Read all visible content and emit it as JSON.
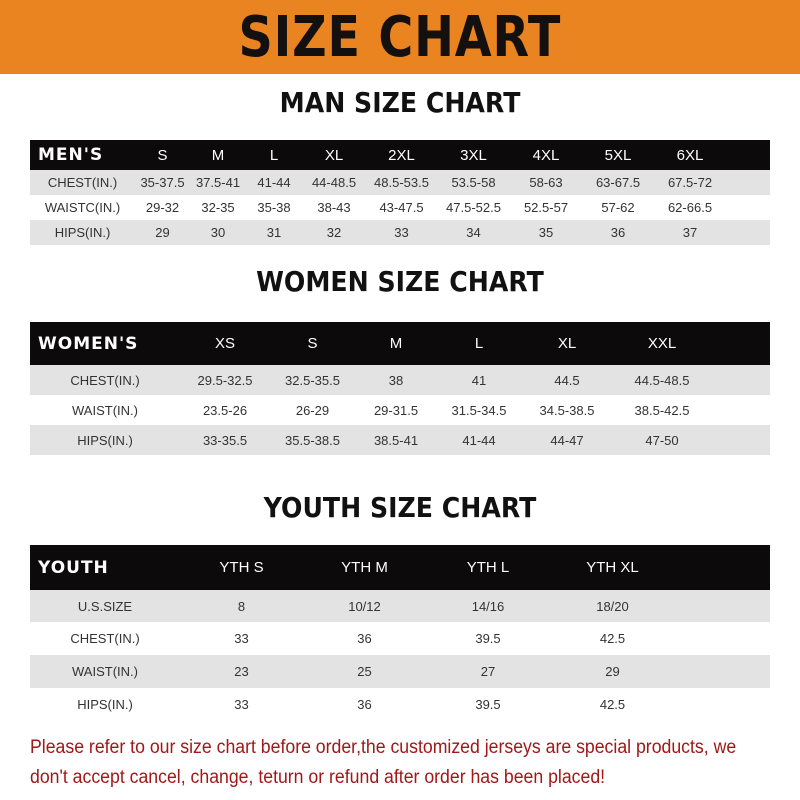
{
  "banner_title": "SIZE CHART",
  "colors": {
    "banner": "#ea8420",
    "header_row": "#0c0a0a",
    "stripe": "#e3e3e3",
    "notice": "#a01818"
  },
  "men": {
    "title": "MAN SIZE CHART",
    "header": [
      "MEN'S",
      "S",
      "M",
      "L",
      "XL",
      "2XL",
      "3XL",
      "4XL",
      "5XL",
      "6XL"
    ],
    "rows": [
      [
        "CHEST(IN.)",
        "35-37.5",
        "37.5-41",
        "41-44",
        "44-48.5",
        "48.5-53.5",
        "53.5-58",
        "58-63",
        "63-67.5",
        "67.5-72"
      ],
      [
        "WAISTC(IN.)",
        "29-32",
        "32-35",
        "35-38",
        "38-43",
        "43-47.5",
        "47.5-52.5",
        "52.5-57",
        "57-62",
        "62-66.5"
      ],
      [
        "HIPS(IN.)",
        "29",
        "30",
        "31",
        "32",
        "33",
        "34",
        "35",
        "36",
        "37"
      ]
    ]
  },
  "women": {
    "title": "WOMEN SIZE CHART",
    "header": [
      "WOMEN'S",
      "XS",
      "S",
      "M",
      "L",
      "XL",
      "XXL"
    ],
    "rows": [
      [
        "CHEST(IN.)",
        "29.5-32.5",
        "32.5-35.5",
        "38",
        "41",
        "44.5",
        "44.5-48.5"
      ],
      [
        "WAIST(IN.)",
        "23.5-26",
        "26-29",
        "29-31.5",
        "31.5-34.5",
        "34.5-38.5",
        "38.5-42.5"
      ],
      [
        "HIPS(IN.)",
        "33-35.5",
        "35.5-38.5",
        "38.5-41",
        "41-44",
        "44-47",
        "47-50"
      ]
    ]
  },
  "youth": {
    "title": "YOUTH SIZE CHART",
    "header": [
      "YOUTH",
      "YTH S",
      "YTH M",
      "YTH L",
      "YTH XL"
    ],
    "rows": [
      [
        "U.S.SIZE",
        "8",
        "10/12",
        "14/16",
        "18/20"
      ],
      [
        "CHEST(IN.)",
        "33",
        "36",
        "39.5",
        "42.5"
      ],
      [
        "WAIST(IN.)",
        "23",
        "25",
        "27",
        "29"
      ],
      [
        "HIPS(IN.)",
        "33",
        "36",
        "39.5",
        "42.5"
      ]
    ]
  },
  "notice": "Please refer to our size chart before order,the customized jerseys are special products, we don't accept cancel, change, teturn or refund after order has been placed!"
}
